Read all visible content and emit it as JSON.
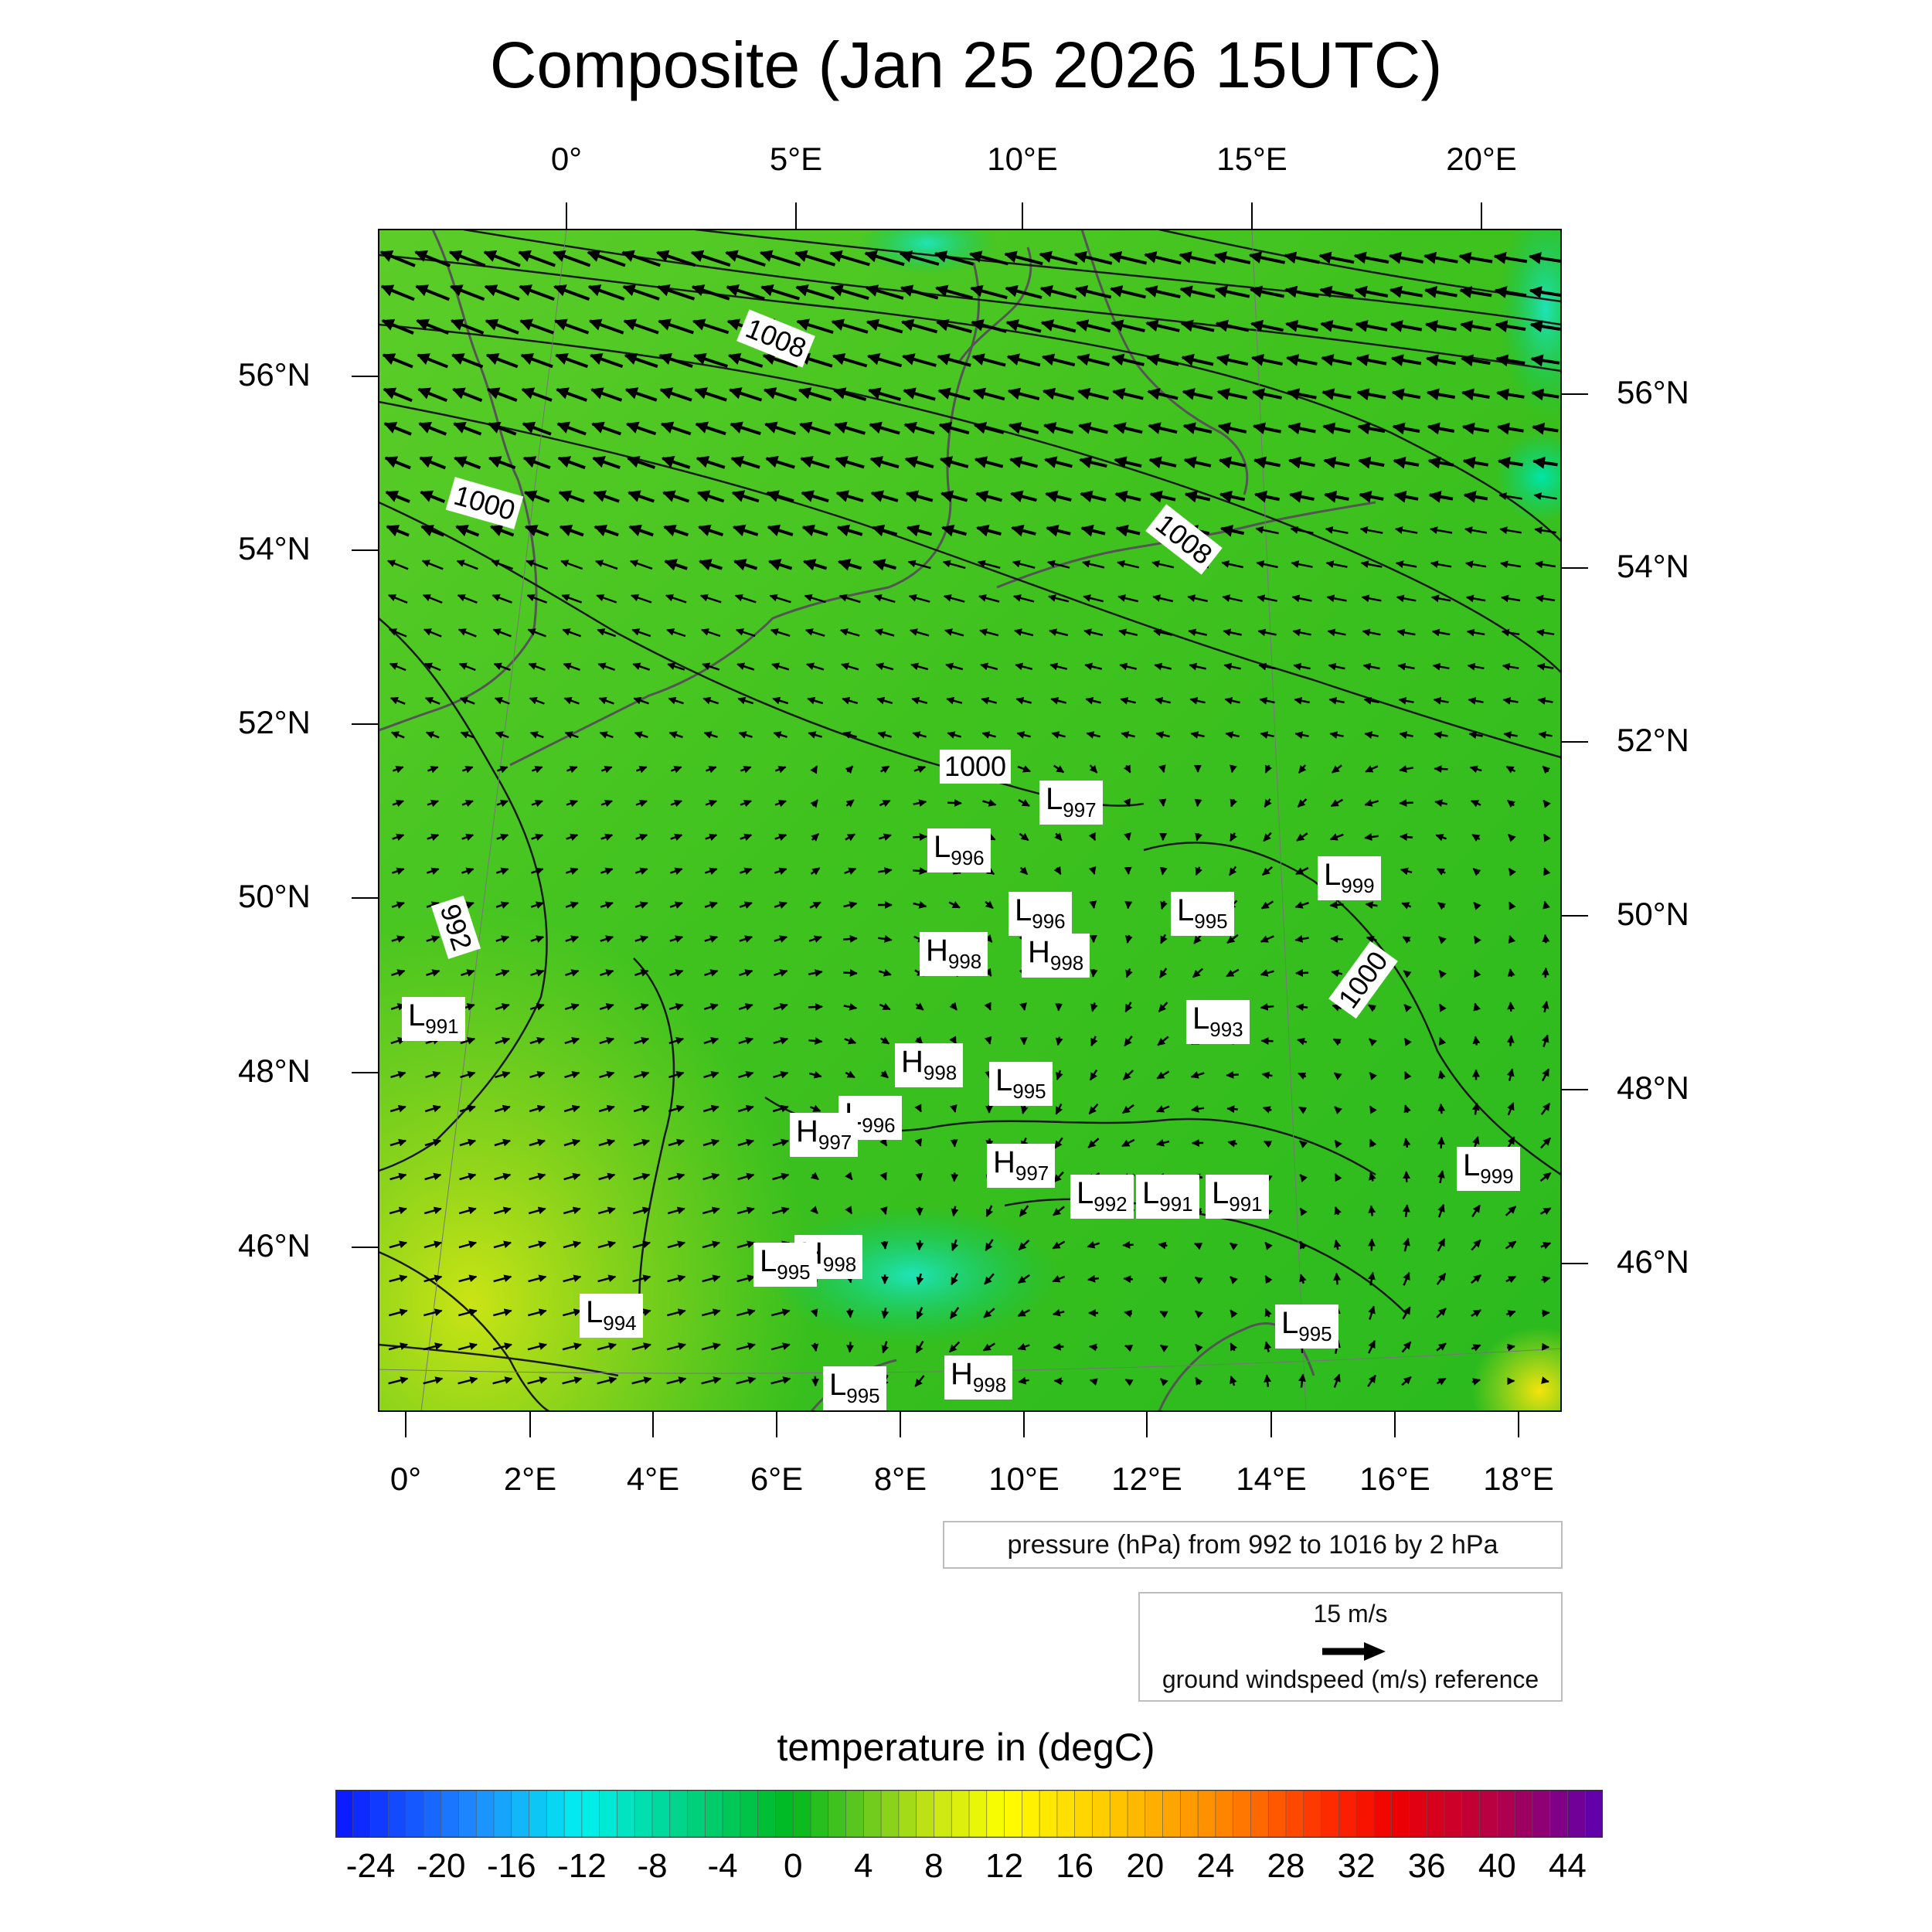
{
  "title": "Composite (Jan 25 2026 15UTC)",
  "top_lon_labels": [
    "0°",
    "5°E",
    "10°E",
    "15°E",
    "20°E"
  ],
  "bottom_lon_labels": [
    "0°",
    "2°E",
    "4°E",
    "6°E",
    "8°E",
    "10°E",
    "12°E",
    "14°E",
    "16°E",
    "18°E"
  ],
  "left_lat_labels": [
    "56°N",
    "54°N",
    "52°N",
    "50°N",
    "48°N",
    "46°N"
  ],
  "right_lat_labels": [
    "56°N",
    "54°N",
    "52°N",
    "50°N",
    "48°N",
    "46°N"
  ],
  "isobar_labels": [
    "1008",
    "1008",
    "1000",
    "1000",
    "1000",
    "992"
  ],
  "pressure_centers": [
    {
      "letter": "L",
      "value": "997"
    },
    {
      "letter": "L",
      "value": "996"
    },
    {
      "letter": "L",
      "value": "996"
    },
    {
      "letter": "L",
      "value": "995"
    },
    {
      "letter": "L",
      "value": "999"
    },
    {
      "letter": "H",
      "value": "998"
    },
    {
      "letter": "H",
      "value": "998"
    },
    {
      "letter": "L",
      "value": "991"
    },
    {
      "letter": "L",
      "value": "993"
    },
    {
      "letter": "H",
      "value": "998"
    },
    {
      "letter": "L",
      "value": "995"
    },
    {
      "letter": "L",
      "value": "996"
    },
    {
      "letter": "H",
      "value": "997"
    },
    {
      "letter": "H",
      "value": "997"
    },
    {
      "letter": "L",
      "value": "999"
    },
    {
      "letter": "L",
      "value": "992"
    },
    {
      "letter": "L",
      "value": "991"
    },
    {
      "letter": "L",
      "value": "991"
    },
    {
      "letter": "L",
      "value": "995"
    },
    {
      "letter": "H",
      "value": "998"
    },
    {
      "letter": "L",
      "value": "994"
    },
    {
      "letter": "L",
      "value": "995"
    },
    {
      "letter": "H",
      "value": "998"
    },
    {
      "letter": "L",
      "value": "995"
    }
  ],
  "pressure_legend": "pressure (hPa) from 992 to 1016 by 2 hPa",
  "wind_legend": {
    "value": "15 m/s",
    "label": "ground windspeed (m/s) reference"
  },
  "colorbar": {
    "title": "temperature in (degC)",
    "min": -26,
    "max": 46,
    "step": 1,
    "tick_labels": [
      "-24",
      "-20",
      "-16",
      "-12",
      "-8",
      "-4",
      "0",
      "4",
      "8",
      "12",
      "16",
      "20",
      "24",
      "28",
      "32",
      "36",
      "40",
      "44"
    ],
    "stops": [
      {
        "t": -26,
        "color": "#0a14ff"
      },
      {
        "t": -18,
        "color": "#1e8cff"
      },
      {
        "t": -12,
        "color": "#00f0f0"
      },
      {
        "t": -6,
        "color": "#00d282"
      },
      {
        "t": 0,
        "color": "#00b91e"
      },
      {
        "t": 4,
        "color": "#64c81e"
      },
      {
        "t": 8,
        "color": "#c8e614"
      },
      {
        "t": 12,
        "color": "#ffff00"
      },
      {
        "t": 18,
        "color": "#ffc800"
      },
      {
        "t": 24,
        "color": "#ff8c00"
      },
      {
        "t": 30,
        "color": "#ff3200"
      },
      {
        "t": 34,
        "color": "#f00000"
      },
      {
        "t": 40,
        "color": "#b40046"
      },
      {
        "t": 46,
        "color": "#5a00b4"
      }
    ]
  }
}
